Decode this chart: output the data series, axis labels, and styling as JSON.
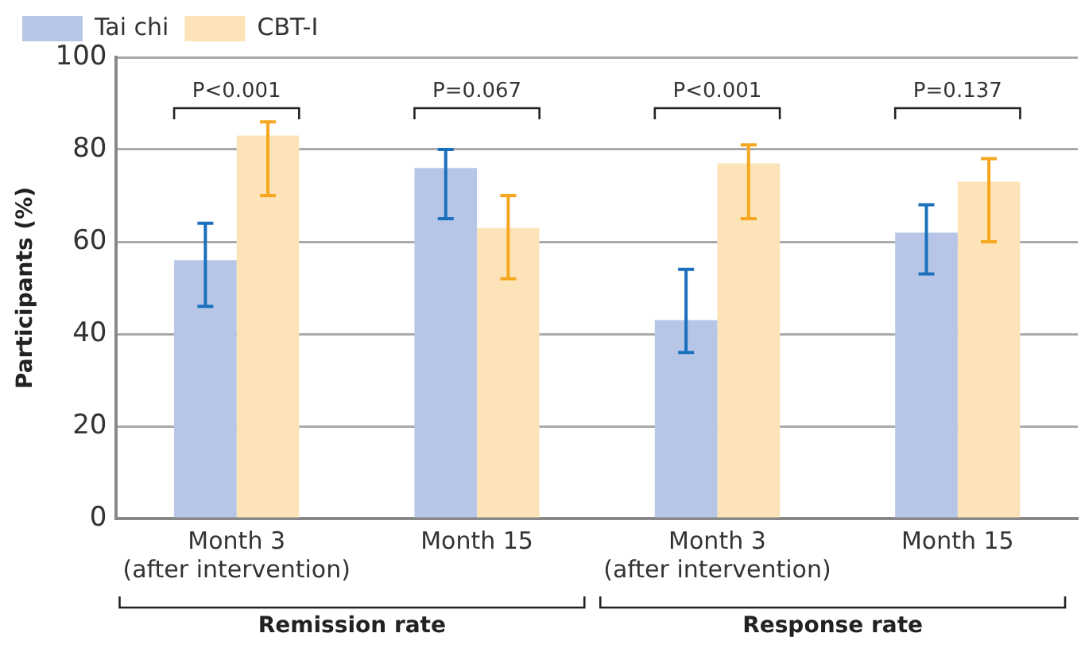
{
  "chart_data": {
    "type": "bar",
    "ylabel": "Participants (%)",
    "categories": [
      "Month 3\n(after intervention)",
      "Month 15",
      "Month 3\n(after intervention)",
      "Month 15"
    ],
    "series": [
      {
        "name": "Tai chi",
        "color": "#b7c6e6",
        "values": [
          56,
          76,
          43,
          62
        ],
        "errors": [
          [
            46,
            64
          ],
          [
            65,
            80
          ],
          [
            36,
            54
          ],
          [
            53,
            68
          ]
        ]
      },
      {
        "name": "CBT-I",
        "color": "#fde3b8",
        "values": [
          83,
          63,
          77,
          73
        ],
        "errors": [
          [
            70,
            86
          ],
          [
            52,
            70
          ],
          [
            65,
            81
          ],
          [
            60,
            78
          ]
        ]
      }
    ],
    "ylim": [
      0,
      100
    ],
    "yticks": [
      0,
      20,
      40,
      60,
      80,
      100
    ],
    "grid": "y",
    "legend": "top left",
    "annotations": [
      "P<0.001",
      "P=0.067",
      "P<0.001",
      "P=0.137",
      "Remission rate",
      "Response rate"
    ]
  }
}
